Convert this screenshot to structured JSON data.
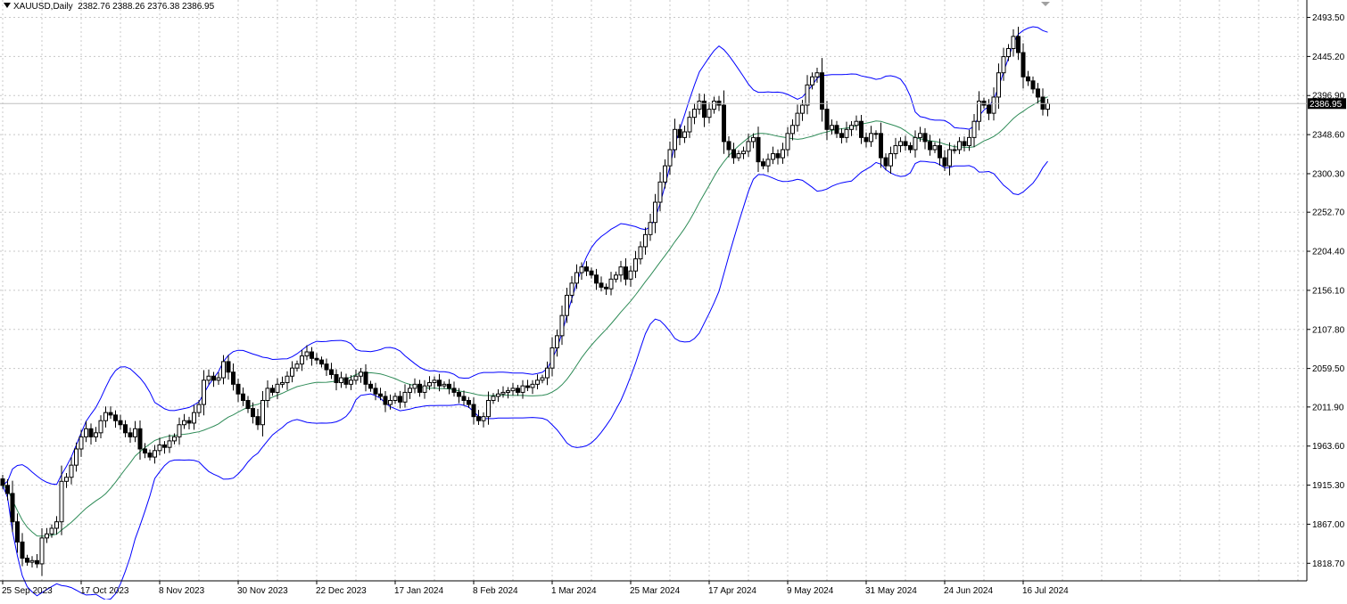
{
  "header": {
    "symbol": "XAUUSD,Daily",
    "ohlc": "2382.76 2388.26 2376.38 2386.95"
  },
  "colors": {
    "background": "#ffffff",
    "grid": "#c8c8c8",
    "candle": "#000000",
    "bands": "#0000ff",
    "middle_band": "#2e8b57",
    "price_line": "#c0c0c0",
    "price_label_bg": "#000000",
    "price_label_text": "#ffffff"
  },
  "chart_data": {
    "type": "candlestick",
    "symbol": "XAUUSD",
    "timeframe": "Daily",
    "grid": true,
    "y_axis": {
      "position": "right",
      "range": [
        1797,
        2515
      ],
      "ticks": [
        "2493.50",
        "2445.20",
        "2396.90",
        "2348.60",
        "2300.30",
        "2252.70",
        "2204.40",
        "2156.10",
        "2107.80",
        "2059.50",
        "2011.90",
        "1963.60",
        "1915.30",
        "1867.00",
        "1818.70"
      ]
    },
    "x_axis": {
      "ticks": [
        {
          "label": "25 Sep 2023",
          "index": 0
        },
        {
          "label": "17 Oct 2023",
          "index": 16
        },
        {
          "label": "8 Nov 2023",
          "index": 32
        },
        {
          "label": "30 Nov 2023",
          "index": 48
        },
        {
          "label": "22 Dec 2023",
          "index": 64
        },
        {
          "label": "17 Jan 2024",
          "index": 80
        },
        {
          "label": "8 Feb 2024",
          "index": 96
        },
        {
          "label": "1 Mar 2024",
          "index": 112
        },
        {
          "label": "25 Mar 2024",
          "index": 128
        },
        {
          "label": "17 Apr 2024",
          "index": 144
        },
        {
          "label": "9 May 2024",
          "index": 160
        },
        {
          "label": "31 May 2024",
          "index": 176
        },
        {
          "label": "24 Jun 2024",
          "index": 192
        },
        {
          "label": "16 Jul 2024",
          "index": 208
        }
      ]
    },
    "last_price": "2386.95",
    "closes": [
      1915,
      1905,
      1870,
      1845,
      1825,
      1820,
      1822,
      1818,
      1850,
      1855,
      1862,
      1870,
      1920,
      1925,
      1940,
      1960,
      1975,
      1985,
      1975,
      1980,
      1995,
      2005,
      2002,
      1995,
      1990,
      1980,
      1975,
      1985,
      1960,
      1955,
      1950,
      1958,
      1965,
      1962,
      1970,
      1975,
      1990,
      1995,
      1992,
      2005,
      2015,
      2045,
      2050,
      2045,
      2048,
      2068,
      2055,
      2040,
      2028,
      2020,
      2010,
      2000,
      1990,
      2020,
      2035,
      2030,
      2040,
      2042,
      2050,
      2060,
      2065,
      2075,
      2080,
      2072,
      2070,
      2065,
      2058,
      2052,
      2042,
      2048,
      2040,
      2045,
      2050,
      2055,
      2040,
      2035,
      2028,
      2025,
      2015,
      2020,
      2025,
      2018,
      2030,
      2035,
      2040,
      2030,
      2038,
      2042,
      2045,
      2038,
      2040,
      2035,
      2030,
      2025,
      2020,
      2015,
      2000,
      1995,
      2000,
      2020,
      2025,
      2028,
      2030,
      2032,
      2035,
      2030,
      2038,
      2036,
      2040,
      2045,
      2048,
      2060,
      2085,
      2100,
      2125,
      2150,
      2165,
      2178,
      2185,
      2180,
      2175,
      2165,
      2160,
      2158,
      2170,
      2175,
      2185,
      2170,
      2180,
      2195,
      2210,
      2225,
      2240,
      2265,
      2290,
      2310,
      2330,
      2355,
      2345,
      2352,
      2370,
      2380,
      2390,
      2370,
      2380,
      2390,
      2385,
      2340,
      2330,
      2320,
      2325,
      2328,
      2340,
      2345,
      2315,
      2310,
      2318,
      2325,
      2320,
      2330,
      2350,
      2360,
      2375,
      2385,
      2410,
      2420,
      2425,
      2380,
      2355,
      2360,
      2350,
      2345,
      2355,
      2360,
      2365,
      2345,
      2340,
      2350,
      2350,
      2320,
      2310,
      2325,
      2335,
      2340,
      2335,
      2330,
      2345,
      2350,
      2340,
      2330,
      2335,
      2320,
      2310,
      2330,
      2330,
      2340,
      2335,
      2345,
      2365,
      2390,
      2385,
      2375,
      2395,
      2425,
      2445,
      2455,
      2470,
      2450,
      2420,
      2415,
      2405,
      2395,
      2380,
      2387
    ]
  }
}
